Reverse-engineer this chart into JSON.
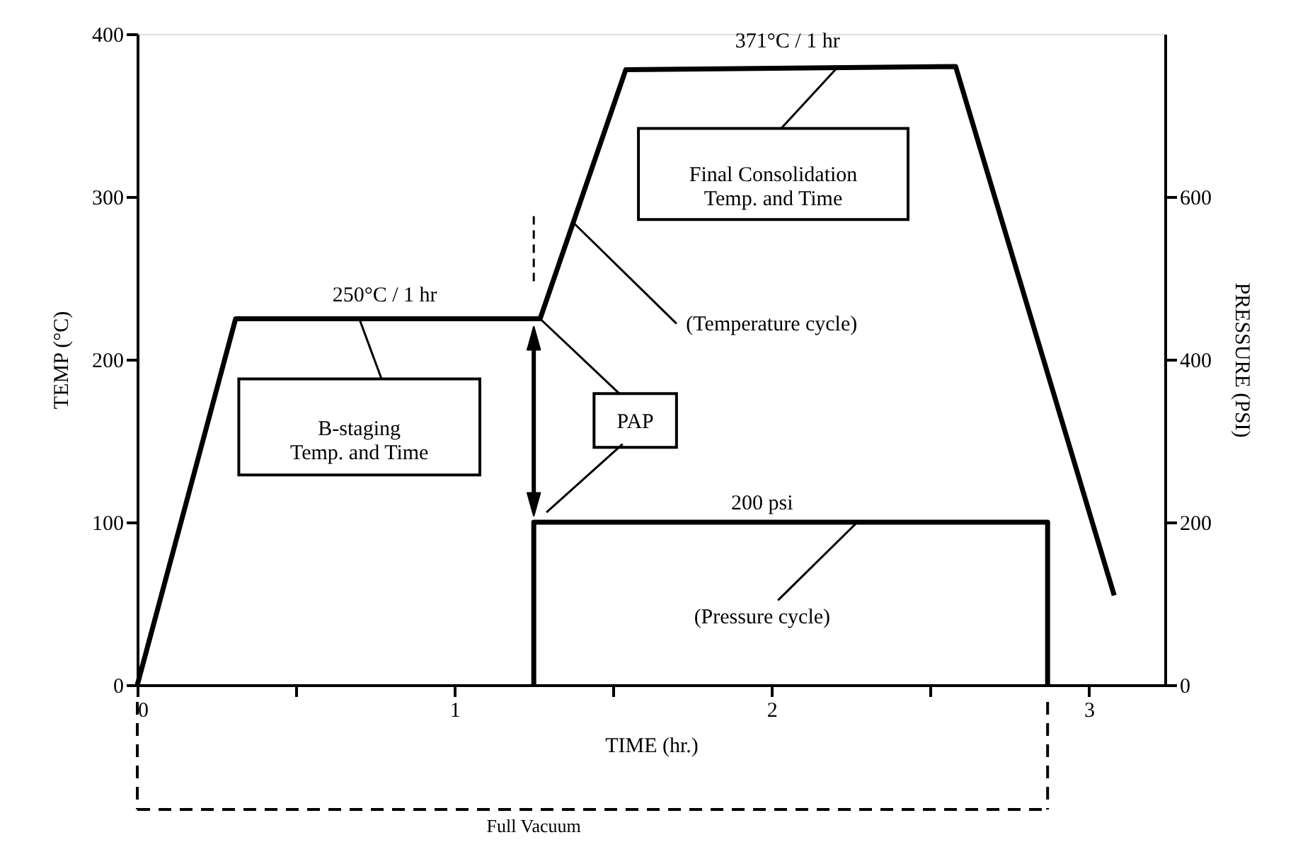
{
  "chart_data": {
    "type": "line",
    "xlabel": "TIME (hr.)",
    "ylabel": "TEMP (°C)",
    "y2label": "PRESSURE (PSI)",
    "series": [
      {
        "type": "line",
        "color": "#000000",
        "x": [
          0,
          0.31,
          1.27,
          1.54,
          2.58,
          3.08
        ],
        "values": [
          0,
          225,
          225,
          378,
          380,
          55
        ]
      },
      {
        "type": "line",
        "color": "#000000",
        "axis": "y2",
        "x": [
          1.25,
          1.25,
          2.87,
          2.87
        ],
        "values": [
          0,
          200,
          200,
          0
        ]
      }
    ],
    "xlim": [
      0,
      3.24
    ],
    "xticks": [
      0,
      {
        "value": 0.5,
        "label": null
      },
      1,
      {
        "value": 1.5,
        "label": null
      },
      2,
      {
        "value": 2.5,
        "label": null
      },
      3
    ],
    "ylim": [
      0,
      400
    ],
    "yticks": [
      0,
      100,
      200,
      300,
      400
    ],
    "y2lim": [
      0,
      800
    ],
    "y2ticks": [
      0,
      200,
      400,
      600
    ],
    "grid": false,
    "marker": "none",
    "line_style": "solid",
    "annotations": [
      "250°C / 1 hr",
      "371°C / 1 hr",
      "Final Consolidation\nTemp. and Time",
      "B-staging\nTemp. and Time",
      {
        "text": "(Temperature cycle)",
        "x": 1.375,
        "y": 284
      },
      {
        "text": "PAP",
        "x": 1.27,
        "y": 225
      },
      "200 psi",
      {
        "text": "(Pressure cycle)",
        "x": 2.27,
        "y": 100
      },
      "Full Vacuum"
    ]
  }
}
